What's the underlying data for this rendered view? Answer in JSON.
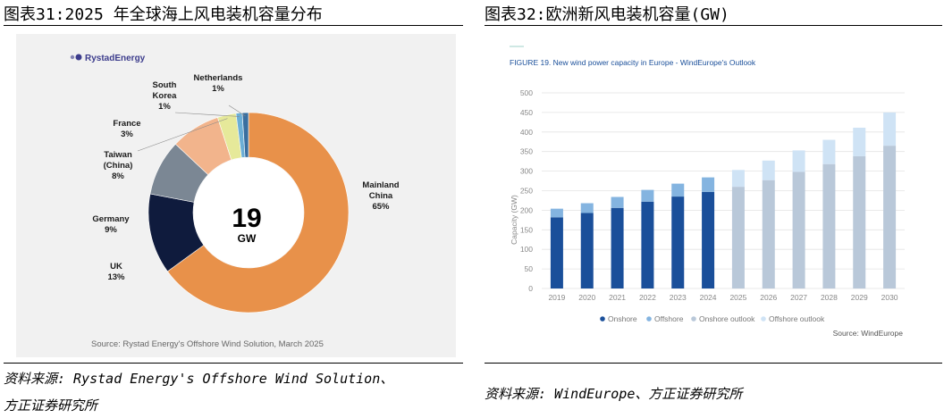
{
  "left_panel": {
    "title": "图表31:2025 年全球海上风电装机容量分布",
    "logo_text": "RystadEnergy",
    "source_note": "Source: Rystad Energy's Offshore Wind Solution, March 2025",
    "footer_line1": "资料来源: Rystad Energy's Offshore Wind Solution、",
    "footer_line2": "方正证券研究所"
  },
  "right_panel": {
    "title": "图表32:欧洲新风电装机容量(GW)",
    "source_note": "Source: WindEurope",
    "footer": "资料来源: WindEurope、方正证券研究所"
  },
  "colors": {
    "donut": [
      "#e8914a",
      "#0f1b3d",
      "#7b8794",
      "#f2b48c",
      "#e6e99a",
      "#6baed6",
      "#3a6fa0"
    ],
    "bars": {
      "Onshore": "#1a4f9a",
      "Offshore": "#84b4e0",
      "Onshore outlook": "#b9c8d9",
      "Offshore outlook": "#cfe3f5"
    }
  },
  "chart_data": [
    {
      "type": "pie",
      "center_value": "19",
      "center_unit": "GW",
      "slices": [
        {
          "label": "Mainland China",
          "lines": [
            "Mainland",
            "China"
          ],
          "percent": 65,
          "value_text": "65%"
        },
        {
          "label": "UK",
          "lines": [
            "UK"
          ],
          "percent": 13,
          "value_text": "13%"
        },
        {
          "label": "Germany",
          "lines": [
            "Germany"
          ],
          "percent": 9,
          "value_text": "9%"
        },
        {
          "label": "Taiwan (China)",
          "lines": [
            "Taiwan",
            "(China)"
          ],
          "percent": 8,
          "value_text": "8%"
        },
        {
          "label": "France",
          "lines": [
            "France"
          ],
          "percent": 3,
          "value_text": "3%"
        },
        {
          "label": "South Korea",
          "lines": [
            "South",
            "Korea"
          ],
          "percent": 1,
          "value_text": "1%"
        },
        {
          "label": "Netherlands",
          "lines": [
            "Netherlands"
          ],
          "percent": 1,
          "value_text": "1%"
        }
      ]
    },
    {
      "type": "bar",
      "stacked": true,
      "title": "FIGURE 19. New wind power capacity in Europe - WindEurope's Outlook",
      "ylabel": "Capacity (GW)",
      "ylim": [
        0,
        500
      ],
      "yticks": [
        0,
        50,
        100,
        150,
        200,
        250,
        300,
        350,
        400,
        450,
        500
      ],
      "grid": true,
      "legend_position": "bottom-left",
      "categories": [
        "2019",
        "2020",
        "2021",
        "2022",
        "2023",
        "2024",
        "2025",
        "2026",
        "2027",
        "2028",
        "2029",
        "2030"
      ],
      "series": [
        {
          "name": "Onshore",
          "values": [
            182,
            193,
            206,
            222,
            235,
            247,
            null,
            null,
            null,
            null,
            null,
            null
          ]
        },
        {
          "name": "Offshore",
          "values": [
            22,
            25,
            28,
            30,
            33,
            37,
            null,
            null,
            null,
            null,
            null,
            null
          ]
        },
        {
          "name": "Onshore outlook",
          "values": [
            null,
            null,
            null,
            null,
            null,
            null,
            260,
            277,
            298,
            318,
            338,
            365
          ]
        },
        {
          "name": "Offshore outlook",
          "values": [
            null,
            null,
            null,
            null,
            null,
            null,
            43,
            50,
            55,
            62,
            73,
            85
          ]
        }
      ]
    }
  ]
}
